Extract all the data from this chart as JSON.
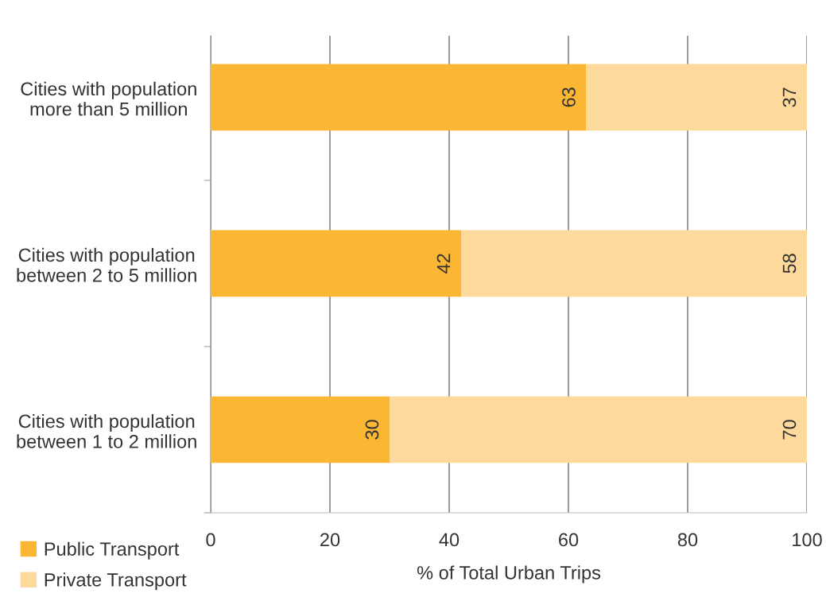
{
  "chart_data": {
    "type": "bar",
    "orientation": "horizontal",
    "stacked": true,
    "categories": [
      "Cities with population\nmore than 5 million",
      "Cities with population\nbetween 2 to 5 million",
      "Cities with population\nbetween 1 to 2 million"
    ],
    "series": [
      {
        "name": "Public Transport",
        "color": "#fbb733",
        "values": [
          63,
          42,
          30
        ]
      },
      {
        "name": "Private Transport",
        "color": "#fdd99b",
        "values": [
          37,
          58,
          70
        ]
      }
    ],
    "xlabel": "% of Total Urban Trips",
    "xlim": [
      0,
      100
    ],
    "xticks": [
      0,
      20,
      40,
      60,
      80,
      100
    ],
    "grid": "x",
    "legend": "bottom left",
    "data_labels": true
  }
}
